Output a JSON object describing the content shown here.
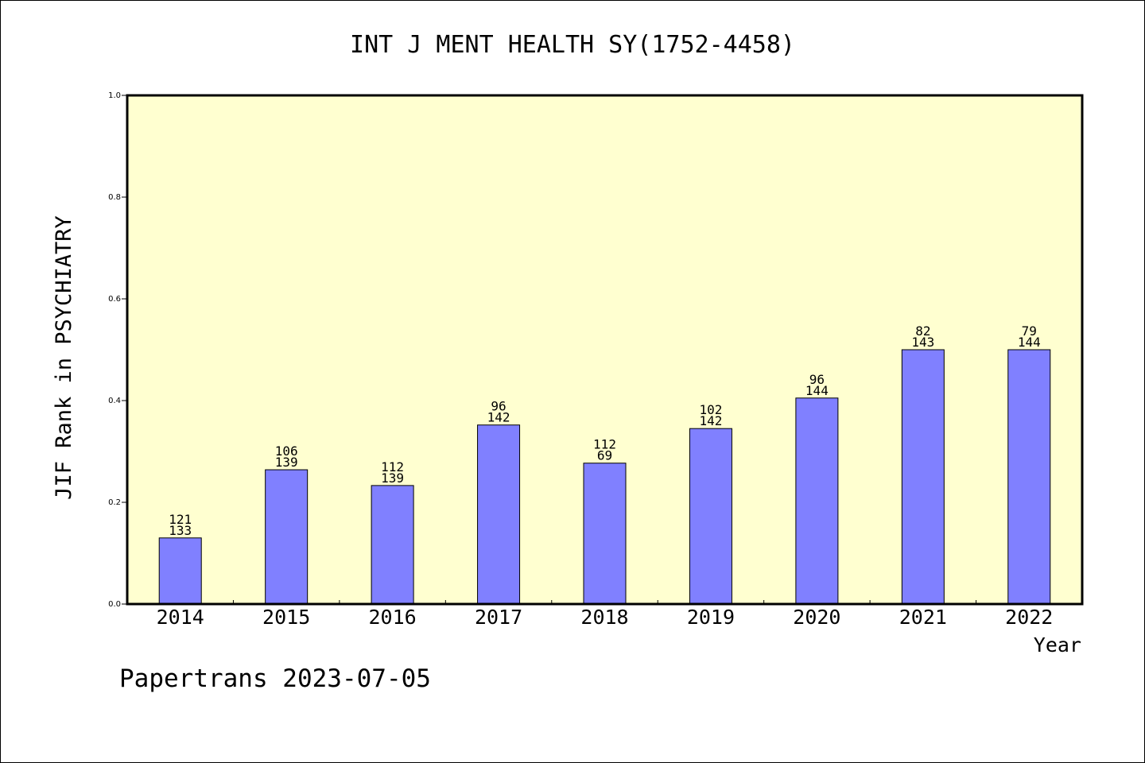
{
  "chart_data": {
    "type": "bar",
    "title": "INT J MENT HEALTH SY(1752-4458)",
    "xlabel": "Year",
    "ylabel": "JIF Rank in PSYCHIATRY",
    "ylim": [
      0.0,
      1.0
    ],
    "yticks": [
      "0.0",
      "0.2",
      "0.4",
      "0.6",
      "0.8",
      "1.0"
    ],
    "categories": [
      "2014",
      "2015",
      "2016",
      "2017",
      "2018",
      "2019",
      "2020",
      "2021",
      "2022"
    ],
    "values": [
      0.13,
      0.264,
      0.233,
      0.352,
      0.277,
      0.345,
      0.405,
      0.5,
      0.5
    ],
    "labels": [
      [
        "121",
        "133"
      ],
      [
        "106",
        "139"
      ],
      [
        "112",
        "139"
      ],
      [
        "96",
        "142"
      ],
      [
        "112",
        "69"
      ],
      [
        "102",
        "142"
      ],
      [
        "96",
        "144"
      ],
      [
        "82",
        "143"
      ],
      [
        "79",
        "144"
      ]
    ],
    "colors": {
      "plot_background": "#ffffd0",
      "bar_fill": "#8080ff",
      "bar_stroke": "#000000"
    },
    "grid": false
  },
  "footer": "Papertrans 2023-07-05"
}
